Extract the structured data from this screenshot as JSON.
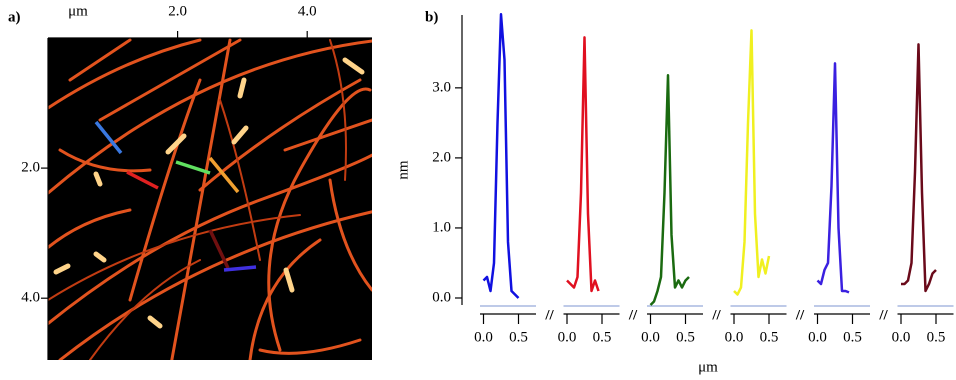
{
  "chart_data": [
    {
      "type": "image",
      "label": "a)",
      "x_label": "μm",
      "xlim": [
        0,
        5.0
      ],
      "ylim": [
        0,
        4.95
      ],
      "xticks": [
        {
          "value": 2,
          "label": "2.0"
        },
        {
          "value": 4,
          "label": "4.0"
        }
      ],
      "yticks": [
        {
          "value": 2,
          "label": "2.0"
        },
        {
          "value": 4,
          "label": "4.0"
        }
      ]
    },
    {
      "type": "line",
      "label": "b)",
      "y_label": "nm",
      "x_label": "μm",
      "ylim": [
        -0.1,
        4.04
      ],
      "xlim": [
        -0.05,
        0.75
      ],
      "yticks": [
        {
          "value": 0,
          "label": "0.0"
        },
        {
          "value": 1,
          "label": "1.0"
        },
        {
          "value": 2,
          "label": "2.0"
        },
        {
          "value": 3,
          "label": "3.0"
        }
      ],
      "xticks": [
        {
          "value": 0,
          "label": "0.0"
        },
        {
          "value": 0.5,
          "label": "0.5"
        }
      ],
      "series": [
        {
          "color": "#1010e0",
          "x": [
            0,
            0.05,
            0.1,
            0.15,
            0.2,
            0.25,
            0.3,
            0.35,
            0.4,
            0.45,
            0.5
          ],
          "values": [
            0.25,
            0.3,
            0.1,
            0.5,
            2.5,
            4.05,
            3.4,
            0.8,
            0.1,
            0.05,
            0.0
          ]
        },
        {
          "color": "#e01020",
          "x": [
            0,
            0.05,
            0.1,
            0.15,
            0.2,
            0.25,
            0.3,
            0.35,
            0.4,
            0.45
          ],
          "values": [
            0.25,
            0.2,
            0.15,
            0.3,
            1.5,
            3.72,
            1.2,
            0.1,
            0.25,
            0.1
          ]
        },
        {
          "color": "#1a6a10",
          "x": [
            0,
            0.05,
            0.1,
            0.15,
            0.2,
            0.25,
            0.3,
            0.35,
            0.4,
            0.45,
            0.5,
            0.55
          ],
          "values": [
            -0.1,
            -0.05,
            0.1,
            0.3,
            1.5,
            3.18,
            0.9,
            0.15,
            0.25,
            0.15,
            0.25,
            0.3
          ]
        },
        {
          "color": "#f0f020",
          "x": [
            0,
            0.05,
            0.1,
            0.15,
            0.2,
            0.25,
            0.3,
            0.35,
            0.4,
            0.45,
            0.5
          ],
          "values": [
            0.1,
            0.05,
            0.15,
            0.8,
            2.5,
            3.82,
            1.2,
            0.3,
            0.55,
            0.35,
            0.6
          ]
        },
        {
          "color": "#3a20e0",
          "x": [
            0,
            0.05,
            0.1,
            0.15,
            0.2,
            0.25,
            0.3,
            0.35,
            0.4,
            0.45
          ],
          "values": [
            0.25,
            0.2,
            0.4,
            0.5,
            1.6,
            3.35,
            1.0,
            0.1,
            0.1,
            0.08
          ]
        },
        {
          "color": "#6a0a1a",
          "x": [
            0,
            0.05,
            0.1,
            0.15,
            0.2,
            0.25,
            0.3,
            0.35,
            0.4,
            0.45,
            0.5
          ],
          "values": [
            0.2,
            0.2,
            0.25,
            0.5,
            1.8,
            3.62,
            1.5,
            0.1,
            0.2,
            0.35,
            0.4
          ]
        }
      ]
    }
  ]
}
